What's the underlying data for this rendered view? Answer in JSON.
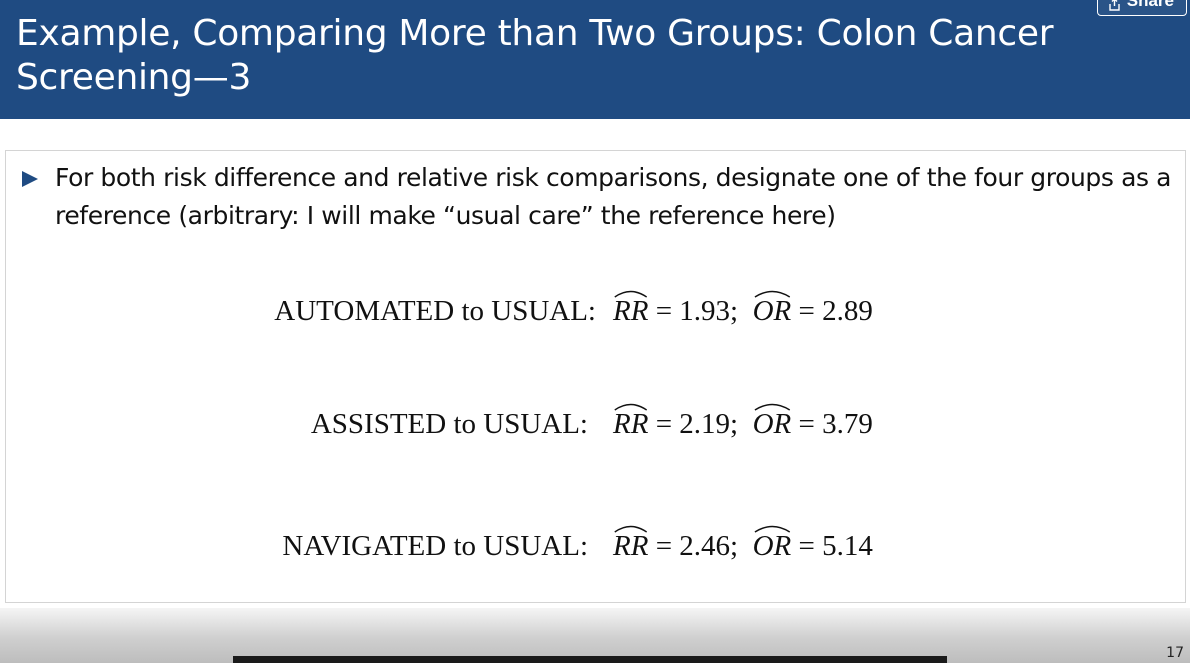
{
  "slide": {
    "title": "Example, Comparing More than Two Groups: Colon Cancer Screening—3",
    "share_label": "Share",
    "bullet": "For both risk difference and relative risk comparisons, designate one of the four groups as a reference (arbitrary: I will make “usual care” the reference here)",
    "equations": [
      {
        "label": "AUTOMATED to USUAL:",
        "rr_symbol": "RR",
        "rr_value": "1.93",
        "or_symbol": "OR",
        "or_value": "2.89"
      },
      {
        "label": "ASSISTED to USUAL:",
        "rr_symbol": "RR",
        "rr_value": "2.19",
        "or_symbol": "OR",
        "or_value": "3.79"
      },
      {
        "label": "NAVIGATED to USUAL:",
        "rr_symbol": "RR",
        "rr_value": "2.46",
        "or_symbol": "OR",
        "or_value": "5.14"
      }
    ],
    "page_number": "17"
  },
  "colors": {
    "header": "#1f4b82",
    "bullet": "#1f4b82"
  }
}
